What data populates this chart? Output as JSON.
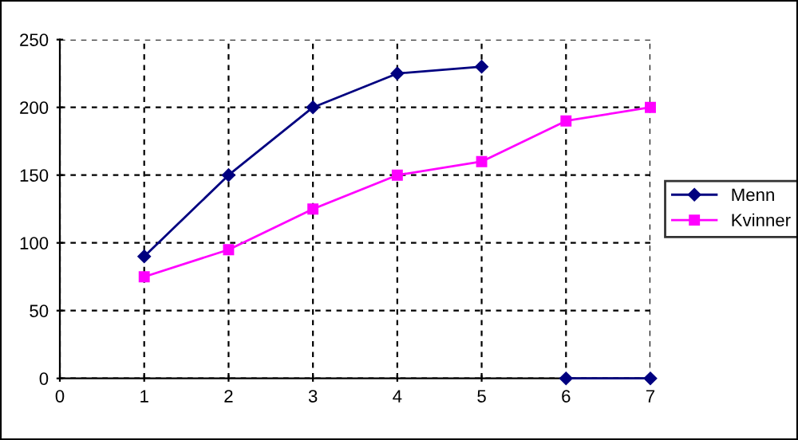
{
  "chart_data": {
    "type": "line",
    "xlim": [
      0,
      7
    ],
    "xticks": [
      0,
      1,
      2,
      3,
      4,
      5,
      6,
      7
    ],
    "ylim": [
      0,
      250
    ],
    "yticks": [
      0,
      50,
      100,
      150,
      200,
      250
    ],
    "grid": true,
    "legend": "right",
    "series": [
      {
        "name": "Menn",
        "color": "#000080",
        "marker": "diamond",
        "x": [
          1,
          2,
          3,
          4,
          5,
          null,
          6,
          7
        ],
        "values": [
          90,
          150,
          200,
          225,
          230,
          null,
          0,
          0
        ]
      },
      {
        "name": "Kvinner",
        "color": "#ff00ff",
        "marker": "square",
        "x": [
          1,
          2,
          3,
          4,
          5,
          6,
          7
        ],
        "values": [
          75,
          95,
          125,
          150,
          160,
          190,
          200
        ]
      }
    ]
  }
}
